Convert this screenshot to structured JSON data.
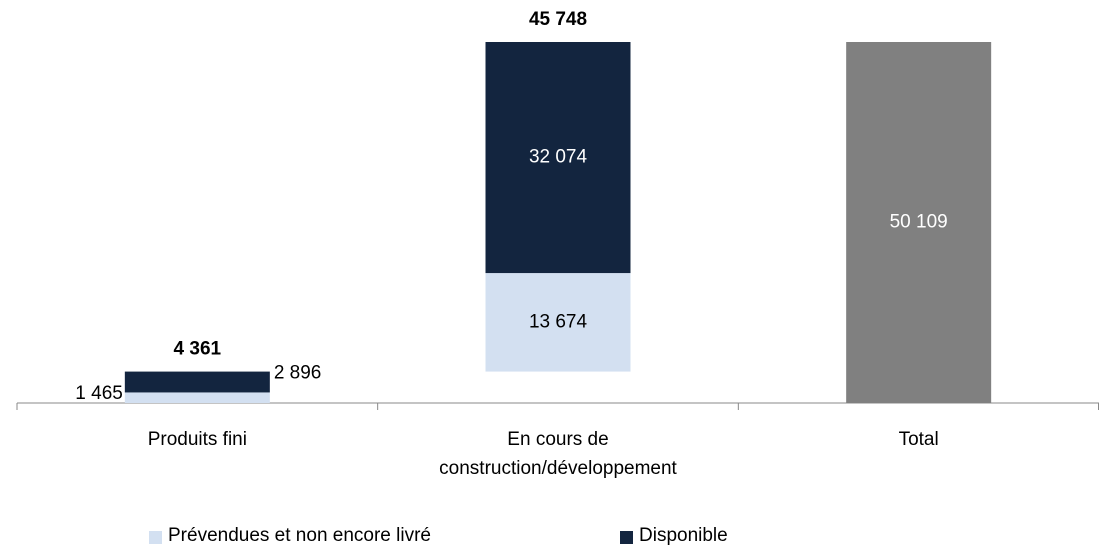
{
  "chart_data": {
    "type": "waterfall-stacked-bar",
    "categories": [
      "Produits fini",
      "En cours de construction/développement",
      "Total"
    ],
    "series": [
      {
        "name": "Prévendues et non encore livré",
        "color": "#d3e0f1",
        "values": [
          1465,
          13674,
          null
        ],
        "value_labels": [
          "1 465",
          "13 674",
          null
        ]
      },
      {
        "name": "Disponible",
        "color": "#13253f",
        "values": [
          2896,
          32074,
          null
        ],
        "value_labels": [
          "2 896",
          "32 074",
          null
        ]
      }
    ],
    "totals": {
      "values": [
        4361,
        45748
      ],
      "value_labels": [
        "4 361",
        "45 748"
      ]
    },
    "total": {
      "category": 2,
      "value": 50109,
      "value_label": "50 109",
      "color": "#808080"
    }
  }
}
